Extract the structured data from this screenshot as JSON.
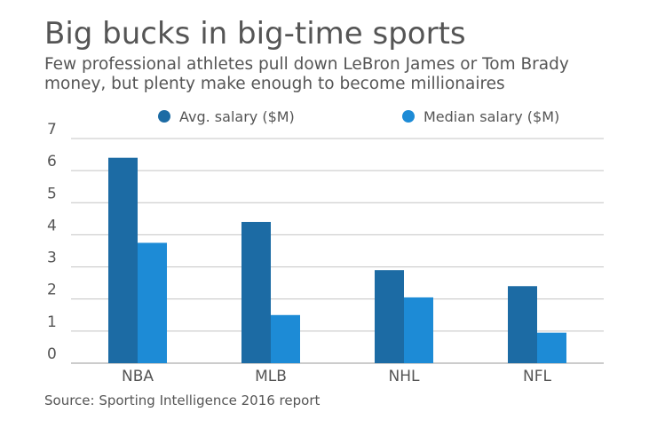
{
  "header": {
    "title": "Big bucks in big-time sports",
    "subtitle": "Few professional athletes pull down LeBron James or Tom Brady money, but plenty make enough to become millionaires"
  },
  "footer": {
    "source": "Source: Sporting Intelligence 2016 report"
  },
  "chart_data": {
    "type": "bar",
    "title": "Big bucks in big-time sports",
    "subtitle": "Few professional athletes pull down LeBron James or Tom Brady money, but plenty make enough to become millionaires",
    "xlabel": "",
    "ylabel": "",
    "categories": [
      "NBA",
      "MLB",
      "NHL",
      "NFL"
    ],
    "series": [
      {
        "name": "Avg. salary ($M)",
        "color": "#1c6ba4",
        "values": [
          6.4,
          4.4,
          2.9,
          2.4
        ]
      },
      {
        "name": "Median salary ($M)",
        "color": "#1d8bd6",
        "values": [
          3.75,
          1.5,
          2.05,
          0.95
        ]
      }
    ],
    "ylim": [
      0,
      7
    ],
    "yticks": [
      0,
      1,
      2,
      3,
      4,
      5,
      6,
      7
    ],
    "grid": true,
    "legend": "top"
  }
}
